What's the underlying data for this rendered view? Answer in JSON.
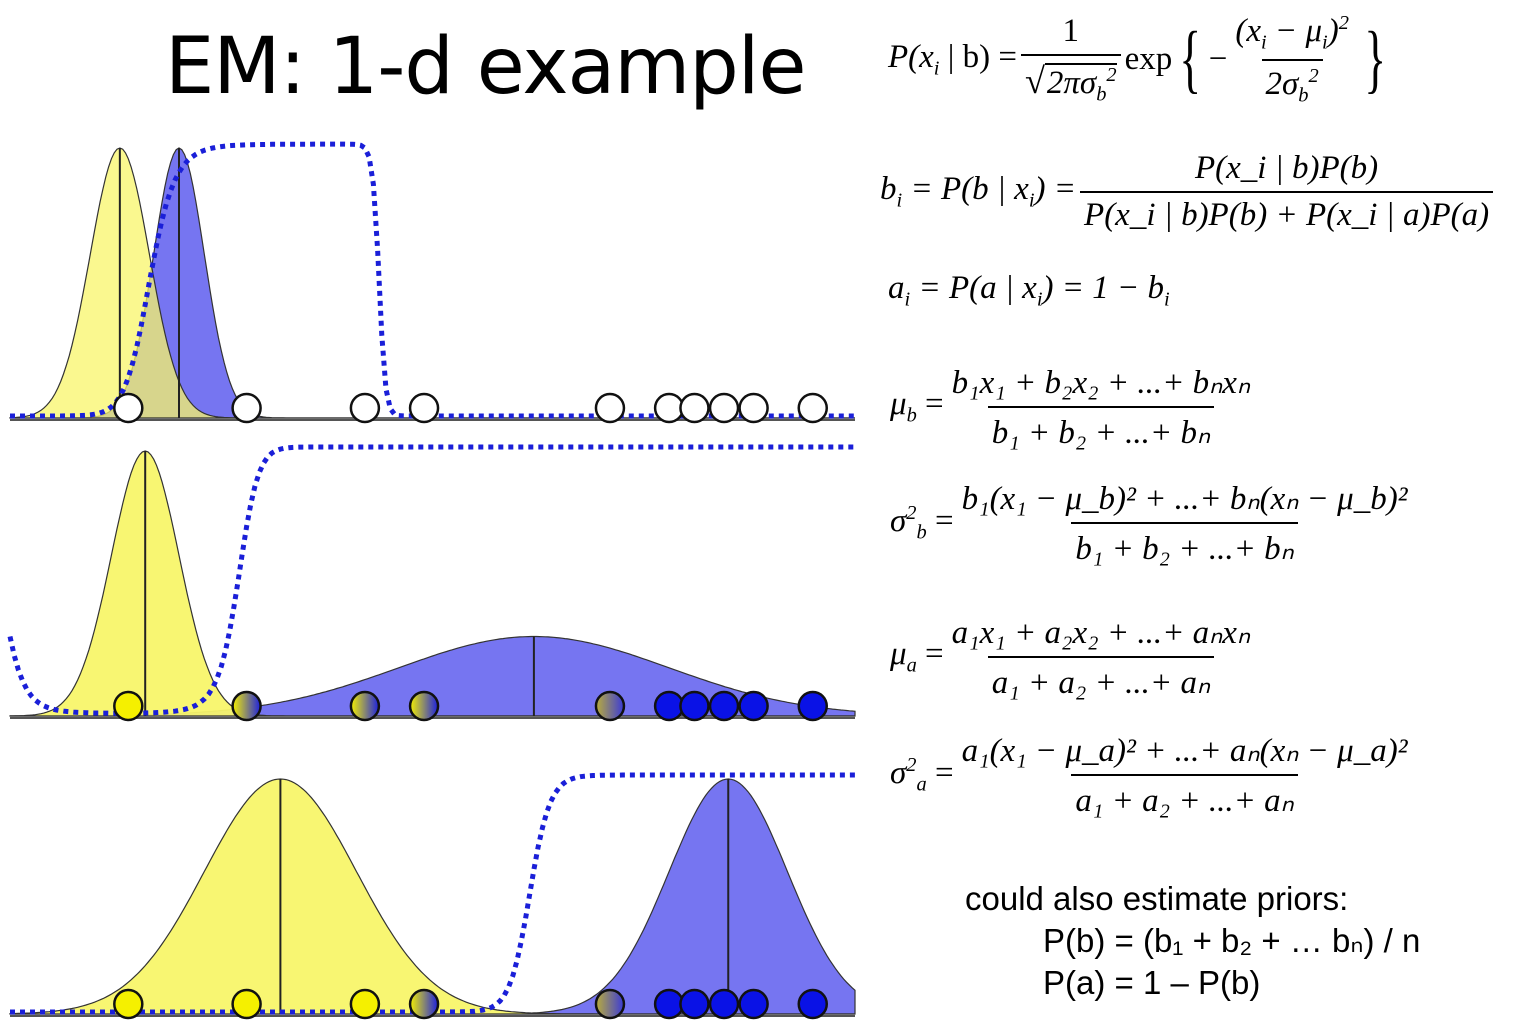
{
  "title": "EM: 1-d example",
  "colors": {
    "yellow_fill": "#f8f56a",
    "blue_fill": "#6f6ef0",
    "blue_dot": "#0a12e6",
    "sigmoid": "#1a1fd8",
    "yellow_dot": "#f5f000"
  },
  "equations": {
    "likelihood": {
      "lhs": "P(x",
      "lhs_sub": "i",
      "lhs_tail": "| b) =",
      "num": "1",
      "den_radicand": "2πσ",
      "den_sub": "b",
      "den_sup": "2",
      "exp": "exp",
      "inner_num": "(x",
      "inner_num_sub": "i",
      "inner_mid": "− μ",
      "inner_mid_sub": "i",
      "inner_close": ")",
      "inner_num_sup": "2",
      "inner_den": "2σ",
      "inner_den_sub": "b",
      "inner_den_sup": "2"
    },
    "b_i": {
      "lhs": "b",
      "lhs_sub": "i",
      "mid": "= P(b | x",
      "mid_sub": "i",
      "mid_tail": ") =",
      "num": "P(x_i | b)P(b)",
      "den": "P(x_i | b)P(b) + P(x_i | a)P(a)"
    },
    "a_i": {
      "text": "= P(a | x",
      "sub": "i",
      "tail": ") = 1 − b",
      "tail_sub": "i",
      "lhs": "a",
      "lhs_sub": "i"
    },
    "mu_b": {
      "lhs": "μ",
      "lhs_sub": "b",
      "num": "b₁x₁ + b₂x₂ + ...+ bₙxₙ",
      "den": "b₁ + b₂ + ...+ bₙ"
    },
    "sigma_b": {
      "lhs": "σ",
      "lhs_sub": "b",
      "lhs_sup": "2",
      "num": "b₁(x₁ − μ_b)² + ...+ bₙ(xₙ − μ_b)²",
      "den": "b₁ + b₂ + ...+ bₙ"
    },
    "mu_a": {
      "lhs": "μ",
      "lhs_sub": "a",
      "num": "a₁x₁ + a₂x₂ + ...+ aₙxₙ",
      "den": "a₁ + a₂ + ...+ aₙ"
    },
    "sigma_a": {
      "lhs": "σ",
      "lhs_sub": "a",
      "lhs_sup": "2",
      "num": "a₁(x₁ − μ_a)² + ...+ aₙ(xₙ − μ_a)²",
      "den": "a₁ + a₂ + ...+ aₙ"
    }
  },
  "priors": {
    "heading": "could also estimate priors:",
    "line1": "P(b) = (b₁ + b₂ + … bₙ) / n",
    "line2": "P(a) = 1 – P(b)"
  },
  "panels": [
    {
      "name": "initial",
      "yellow": {
        "mean": 0.13,
        "std": 0.035
      },
      "blue": {
        "mean": 0.2,
        "std": 0.03
      },
      "points": [
        {
          "x": 0.14,
          "fill": "white"
        },
        {
          "x": 0.28,
          "fill": "white"
        },
        {
          "x": 0.42,
          "fill": "white"
        },
        {
          "x": 0.49,
          "fill": "white"
        },
        {
          "x": 0.71,
          "fill": "white"
        },
        {
          "x": 0.78,
          "fill": "white"
        },
        {
          "x": 0.81,
          "fill": "white"
        },
        {
          "x": 0.845,
          "fill": "white"
        },
        {
          "x": 0.88,
          "fill": "white"
        },
        {
          "x": 0.95,
          "fill": "white"
        }
      ]
    },
    {
      "name": "iteration-1",
      "yellow": {
        "mean": 0.16,
        "std": 0.04
      },
      "blue": {
        "mean": 0.62,
        "std": 0.16
      },
      "points": [
        {
          "x": 0.14,
          "fill": "yellow"
        },
        {
          "x": 0.28,
          "fill": "mixed"
        },
        {
          "x": 0.42,
          "fill": "mixed"
        },
        {
          "x": 0.49,
          "fill": "mixed"
        },
        {
          "x": 0.71,
          "fill": "mixed"
        },
        {
          "x": 0.78,
          "fill": "blue"
        },
        {
          "x": 0.81,
          "fill": "blue"
        },
        {
          "x": 0.845,
          "fill": "blue"
        },
        {
          "x": 0.88,
          "fill": "blue"
        },
        {
          "x": 0.95,
          "fill": "blue"
        }
      ]
    },
    {
      "name": "converged",
      "yellow": {
        "mean": 0.32,
        "std": 0.09
      },
      "blue": {
        "mean": 0.85,
        "std": 0.07
      },
      "points": [
        {
          "x": 0.14,
          "fill": "yellow"
        },
        {
          "x": 0.28,
          "fill": "yellow"
        },
        {
          "x": 0.42,
          "fill": "yellow"
        },
        {
          "x": 0.49,
          "fill": "mixed"
        },
        {
          "x": 0.71,
          "fill": "mixed"
        },
        {
          "x": 0.78,
          "fill": "blue"
        },
        {
          "x": 0.81,
          "fill": "blue"
        },
        {
          "x": 0.845,
          "fill": "blue"
        },
        {
          "x": 0.88,
          "fill": "blue"
        },
        {
          "x": 0.95,
          "fill": "blue"
        }
      ]
    }
  ]
}
